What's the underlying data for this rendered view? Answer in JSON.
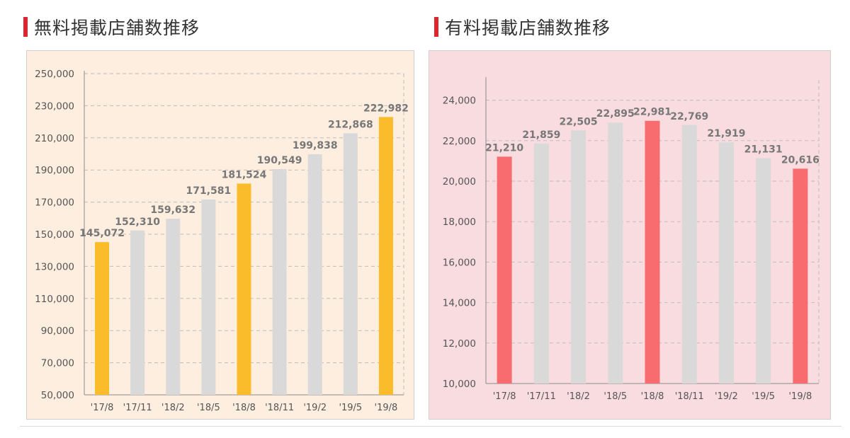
{
  "headings": {
    "left": "無料掲載店舗数推移",
    "right": "有料掲載店舗数推移"
  },
  "colors": {
    "heading_accent": "#e0232c",
    "left_panel_bg": "#fdeee0",
    "right_panel_bg": "#f8dce0",
    "gray_bar": "#d9d9d9",
    "left_highlight": "#fbbc2b",
    "right_highlight": "#f86b6e"
  },
  "chart_data": [
    {
      "type": "bar",
      "title": "無料掲載店舗数推移",
      "categories": [
        "'17/8",
        "'17/11",
        "'18/2",
        "'18/5",
        "'18/8",
        "'18/11",
        "'19/2",
        "'19/5",
        "'19/8"
      ],
      "values": [
        145072,
        152310,
        159632,
        171581,
        181524,
        190549,
        199838,
        212868,
        222982
      ],
      "value_labels": [
        "145,072",
        "152,310",
        "159,632",
        "171,581",
        "181,524",
        "190,549",
        "199,838",
        "212,868",
        "222,982"
      ],
      "highlighted": [
        true,
        false,
        false,
        false,
        true,
        false,
        false,
        false,
        true
      ],
      "ylim": [
        50000,
        250000
      ],
      "yticks": [
        "50,000",
        "70,000",
        "90,000",
        "110,000",
        "130,000",
        "150,000",
        "170,000",
        "190,000",
        "210,000",
        "230,000",
        "250,000"
      ],
      "grid": true,
      "xlabel": "",
      "ylabel": ""
    },
    {
      "type": "bar",
      "title": "有料掲載店舗数推移",
      "categories": [
        "'17/8",
        "'17/11",
        "'18/2",
        "'18/5",
        "'18/8",
        "'18/11",
        "'19/2",
        "'19/5",
        "'19/8"
      ],
      "values": [
        21210,
        21859,
        22505,
        22895,
        22981,
        22769,
        21919,
        21131,
        20616
      ],
      "value_labels": [
        "21,210",
        "21,859",
        "22,505",
        "22,895",
        "22,981",
        "22,769",
        "21,919",
        "21,131",
        "20,616"
      ],
      "highlighted": [
        true,
        false,
        false,
        false,
        true,
        false,
        false,
        false,
        true
      ],
      "ylim": [
        10000,
        25000
      ],
      "yticks": [
        "10,000",
        "12,000",
        "14,000",
        "16,000",
        "18,000",
        "20,000",
        "22,000",
        "24,000"
      ],
      "grid": true,
      "xlabel": "",
      "ylabel": ""
    }
  ]
}
